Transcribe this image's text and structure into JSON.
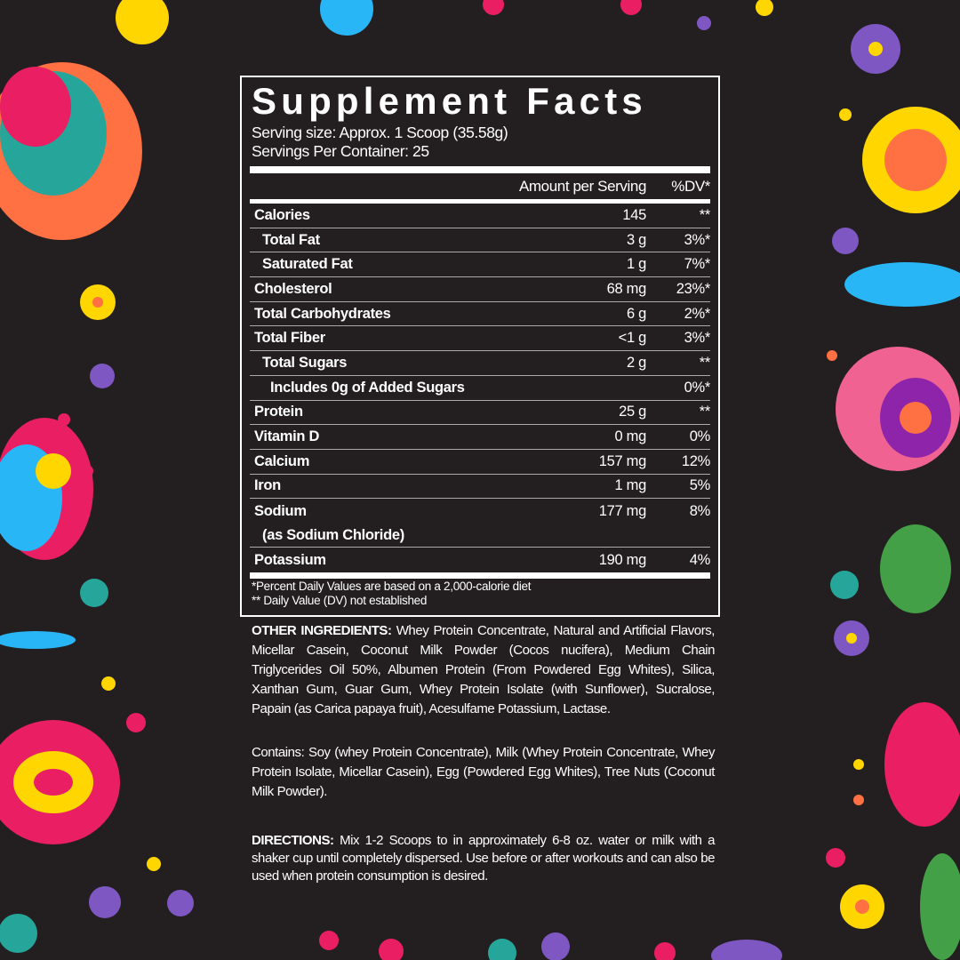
{
  "colors": {
    "background": "#231f20",
    "text": "#ffffff",
    "accents": [
      "#e91e63",
      "#ffd600",
      "#7e57c2",
      "#26a69a",
      "#ff7043",
      "#43a047",
      "#29b6f6"
    ]
  },
  "label": {
    "title": "Supplement Facts",
    "serving_size": "Serving size: Approx. 1 Scoop (35.58g)",
    "servings_per_container": "Servings Per Container: 25",
    "header_amount": "Amount per Serving",
    "header_dv": "%DV*",
    "rows": [
      {
        "name": "Calories",
        "amount": "145",
        "dv": "**"
      },
      {
        "name": "Total Fat",
        "amount": "3 g",
        "dv": "3%*"
      },
      {
        "name": "Saturated Fat",
        "amount": "1 g",
        "dv": "7%*"
      },
      {
        "name": "Cholesterol",
        "amount": "68 mg",
        "dv": "23%*"
      },
      {
        "name": "Total Carbohydrates",
        "amount": "6 g",
        "dv": "2%*"
      },
      {
        "name": "Total Fiber",
        "amount": "<1 g",
        "dv": "3%*"
      },
      {
        "name": "Total Sugars",
        "amount": "2 g",
        "dv": "**"
      },
      {
        "name": "Includes 0g of Added Sugars",
        "amount": "",
        "dv": "0%*"
      },
      {
        "name": "Protein",
        "amount": "25 g",
        "dv": "**"
      },
      {
        "name": "Vitamin D",
        "amount": "0 mg",
        "dv": "0%"
      },
      {
        "name": "Calcium",
        "amount": "157 mg",
        "dv": "12%"
      },
      {
        "name": "Iron",
        "amount": "1 mg",
        "dv": "5%"
      },
      {
        "name": "Sodium",
        "sub": "(as Sodium Chloride)",
        "amount": "177 mg",
        "dv": "8%"
      },
      {
        "name": "Potassium",
        "amount": "190 mg",
        "dv": "4%"
      }
    ],
    "footnote_1": "*Percent Daily Values are based on a 2,000-calorie diet",
    "footnote_2": "** Daily Value (DV) not established"
  },
  "ingredients": {
    "heading": "OTHER INGREDIENTS:",
    "text": " Whey Protein Concentrate, Natural and Artificial Flavors, Micellar Casein, Coconut Milk Powder (Cocos nucifera), Medium Chain Triglycerides Oil 50%, Albumen Protein (From Powdered Egg Whites), Silica, Xanthan Gum, Guar Gum, Whey Protein Isolate (with Sunflower), Sucralose, Papain (as Carica papaya fruit), Acesulfame Potassium, Lactase."
  },
  "contains": "Contains: Soy (whey Protein Concentrate), Milk (Whey Protein Concentrate, Whey Protein Isolate, Micellar Casein), Egg (Powdered Egg Whites), Tree Nuts (Coconut Milk Powder).",
  "directions": {
    "heading": "DIRECTIONS:",
    "text": " Mix 1-2 Scoops to in approximately 6-8 oz. water or milk with a shaker cup until completely dispersed. Use before or after workouts and can also be used when protein consumption is desired."
  }
}
